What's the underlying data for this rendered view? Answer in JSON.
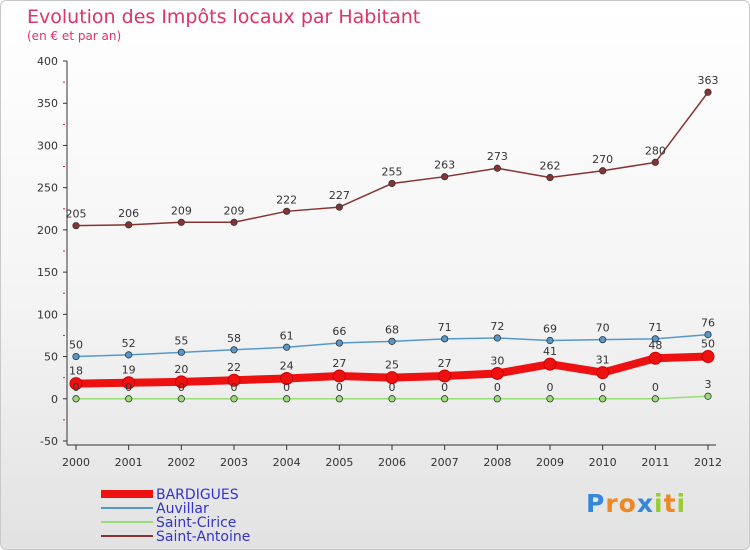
{
  "chart_data": {
    "type": "line",
    "title": "Evolution des Impôts locaux par Habitant",
    "subtitle": "(en € et par an)",
    "x": [
      "2000",
      "2001",
      "2002",
      "2003",
      "2004",
      "2005",
      "2006",
      "2007",
      "2008",
      "2009",
      "2010",
      "2011",
      "2012"
    ],
    "ylim": [
      -50,
      400
    ],
    "yticks": [
      "-50",
      "0",
      "50",
      "100",
      "150",
      "200",
      "250",
      "300",
      "350",
      "400"
    ],
    "grid": false,
    "legend_position": "bottom-left",
    "series": [
      {
        "name": "BARDIGUES",
        "color": "#ee1111",
        "width": "thick",
        "values": [
          18,
          19,
          20,
          22,
          24,
          27,
          25,
          27,
          30,
          41,
          31,
          48,
          50
        ],
        "labels": [
          "18",
          "19",
          "20",
          "22",
          "24",
          "27",
          "25",
          "27",
          "30",
          "41",
          "31",
          "48",
          "50"
        ]
      },
      {
        "name": "Auvillar",
        "color": "#5599cc",
        "width": "thin",
        "values": [
          50,
          52,
          55,
          58,
          61,
          66,
          68,
          71,
          72,
          69,
          70,
          71,
          76
        ],
        "labels": [
          "50",
          "52",
          "55",
          "58",
          "61",
          "66",
          "68",
          "71",
          "72",
          "69",
          "70",
          "71",
          "76"
        ]
      },
      {
        "name": "Saint-Cirice",
        "color": "#99dd77",
        "width": "thin",
        "values": [
          0,
          0,
          0,
          0,
          0,
          0,
          0,
          0,
          0,
          0,
          0,
          0,
          3
        ],
        "labels": [
          "0",
          "0",
          "0",
          "0",
          "0",
          "0",
          "0",
          "0",
          "0",
          "0",
          "0",
          "0",
          "3"
        ]
      },
      {
        "name": "Saint-Antoine",
        "color": "#883333",
        "width": "thin",
        "values": [
          205,
          206,
          209,
          209,
          222,
          227,
          255,
          263,
          273,
          262,
          270,
          280,
          363
        ],
        "labels": [
          "205",
          "206",
          "209",
          "209",
          "222",
          "227",
          "255",
          "263",
          "273",
          "262",
          "270",
          "280",
          "363"
        ]
      }
    ]
  },
  "logo": {
    "letters": [
      "P",
      "r",
      "o",
      "x",
      "i",
      "t",
      "i"
    ],
    "colors": [
      "#3388dd",
      "#ee8822",
      "#ee8822",
      "#3388dd",
      "#99cc33",
      "#ee8822",
      "#99cc33"
    ]
  }
}
